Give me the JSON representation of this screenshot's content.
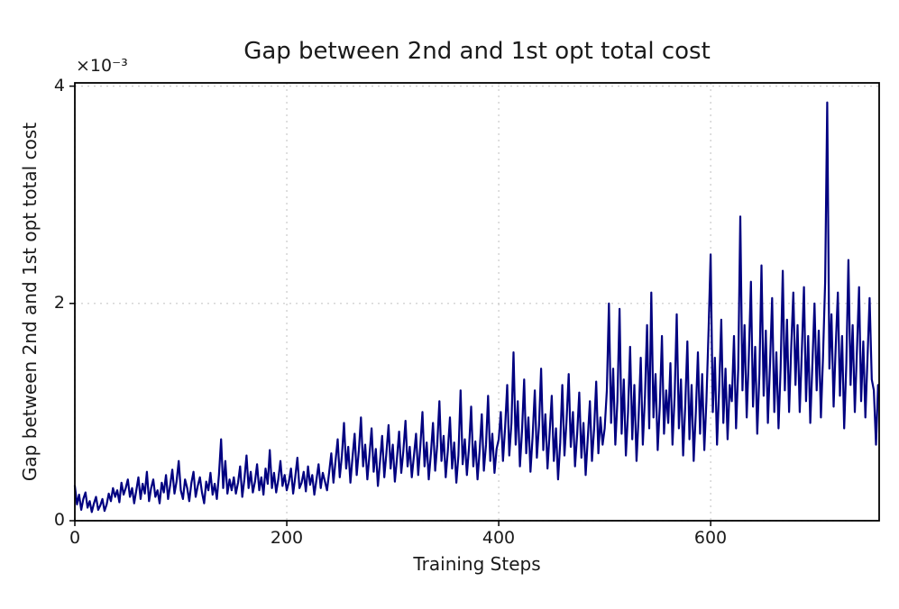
{
  "chart_data": {
    "type": "line",
    "title": "Gap between 2nd and 1st opt total cost",
    "xlabel": "Training Steps",
    "ylabel": "Gap between 2nd and 1st opt total cost",
    "y_scale_label": "×10⁻³",
    "y_unit": "values listed in units of 1e-3",
    "xlim": [
      0,
      759
    ],
    "ylim": [
      0,
      4.03
    ],
    "xticks": [
      0,
      200,
      400,
      600
    ],
    "xtick_labels": [
      "0",
      "200",
      "400",
      "600"
    ],
    "yticks": [
      0,
      2,
      4
    ],
    "ytick_labels": [
      "0",
      "2",
      "4"
    ],
    "grid": true,
    "legend": "none",
    "line_color": "#000080",
    "grid_color": "#c9c9c9",
    "series_name": "gap between 2nd and 1st opt total cost",
    "x_start": 0,
    "x_step": 2,
    "values": [
      0.32,
      0.15,
      0.24,
      0.1,
      0.2,
      0.26,
      0.12,
      0.18,
      0.08,
      0.16,
      0.22,
      0.1,
      0.14,
      0.2,
      0.09,
      0.15,
      0.25,
      0.18,
      0.3,
      0.22,
      0.28,
      0.17,
      0.35,
      0.24,
      0.3,
      0.38,
      0.22,
      0.3,
      0.16,
      0.28,
      0.4,
      0.2,
      0.34,
      0.25,
      0.45,
      0.18,
      0.3,
      0.38,
      0.22,
      0.28,
      0.16,
      0.35,
      0.26,
      0.42,
      0.2,
      0.33,
      0.47,
      0.25,
      0.36,
      0.55,
      0.28,
      0.2,
      0.38,
      0.3,
      0.18,
      0.35,
      0.45,
      0.22,
      0.32,
      0.4,
      0.26,
      0.16,
      0.36,
      0.28,
      0.44,
      0.24,
      0.34,
      0.2,
      0.42,
      0.75,
      0.3,
      0.55,
      0.25,
      0.38,
      0.28,
      0.4,
      0.25,
      0.35,
      0.5,
      0.22,
      0.38,
      0.6,
      0.3,
      0.45,
      0.26,
      0.36,
      0.52,
      0.28,
      0.4,
      0.24,
      0.48,
      0.34,
      0.65,
      0.3,
      0.44,
      0.26,
      0.38,
      0.55,
      0.32,
      0.42,
      0.28,
      0.36,
      0.48,
      0.25,
      0.4,
      0.58,
      0.3,
      0.35,
      0.45,
      0.27,
      0.5,
      0.33,
      0.42,
      0.24,
      0.38,
      0.52,
      0.3,
      0.44,
      0.36,
      0.28,
      0.45,
      0.62,
      0.35,
      0.55,
      0.75,
      0.4,
      0.6,
      0.9,
      0.48,
      0.68,
      0.35,
      0.58,
      0.8,
      0.42,
      0.65,
      0.95,
      0.5,
      0.7,
      0.38,
      0.6,
      0.85,
      0.45,
      0.66,
      0.32,
      0.55,
      0.78,
      0.4,
      0.62,
      0.88,
      0.48,
      0.7,
      0.36,
      0.58,
      0.82,
      0.44,
      0.64,
      0.92,
      0.5,
      0.68,
      0.4,
      0.6,
      0.8,
      0.42,
      0.68,
      1.0,
      0.5,
      0.72,
      0.38,
      0.62,
      0.9,
      0.46,
      0.7,
      1.1,
      0.55,
      0.78,
      0.4,
      0.65,
      0.95,
      0.48,
      0.72,
      0.35,
      0.6,
      1.2,
      0.52,
      0.75,
      0.42,
      0.68,
      1.05,
      0.5,
      0.73,
      0.38,
      0.64,
      0.98,
      0.46,
      0.7,
      1.15,
      0.55,
      0.8,
      0.44,
      0.66,
      0.75,
      1.0,
      0.55,
      0.85,
      1.25,
      0.6,
      0.9,
      1.55,
      0.7,
      1.1,
      0.5,
      0.82,
      1.3,
      0.62,
      0.95,
      0.45,
      0.78,
      1.2,
      0.58,
      0.88,
      1.4,
      0.65,
      0.98,
      0.48,
      0.8,
      1.15,
      0.55,
      0.85,
      0.38,
      0.72,
      1.25,
      0.6,
      0.92,
      1.35,
      0.68,
      1.0,
      0.5,
      0.8,
      1.18,
      0.58,
      0.9,
      0.42,
      0.75,
      1.1,
      0.55,
      0.85,
      1.28,
      0.62,
      0.95,
      0.7,
      0.85,
      1.2,
      2.0,
      0.9,
      1.4,
      0.7,
      1.1,
      1.95,
      0.8,
      1.3,
      0.6,
      1.0,
      1.6,
      0.75,
      1.25,
      0.55,
      0.95,
      1.5,
      0.7,
      1.15,
      1.8,
      0.85,
      2.1,
      0.95,
      1.35,
      0.65,
      1.05,
      1.7,
      0.8,
      1.2,
      0.9,
      1.45,
      0.7,
      1.15,
      1.9,
      0.85,
      1.3,
      0.6,
      1.05,
      1.65,
      0.75,
      1.25,
      0.55,
      1.0,
      1.55,
      0.8,
      1.35,
      0.65,
      1.1,
      1.75,
      2.45,
      1.0,
      1.5,
      0.7,
      1.2,
      1.85,
      0.9,
      1.4,
      0.75,
      1.25,
      1.1,
      1.7,
      0.85,
      1.4,
      2.8,
      1.2,
      1.8,
      0.95,
      1.5,
      2.2,
      1.05,
      1.6,
      0.8,
      1.35,
      2.35,
      1.15,
      1.75,
      0.9,
      1.45,
      2.05,
      1.0,
      1.55,
      0.85,
      1.4,
      2.3,
      1.2,
      1.85,
      1.0,
      1.6,
      2.1,
      1.25,
      1.8,
      1.0,
      1.55,
      2.15,
      1.1,
      1.7,
      0.9,
      1.45,
      2.0,
      1.2,
      1.75,
      0.95,
      1.5,
      2.2,
      3.85,
      1.4,
      1.9,
      1.05,
      1.6,
      2.1,
      1.15,
      1.7,
      0.85,
      1.45,
      2.4,
      1.25,
      1.8,
      1.0,
      1.55,
      2.15,
      1.1,
      1.65,
      0.95,
      1.5,
      2.05,
      1.3,
      1.2,
      0.7,
      1.25
    ]
  }
}
